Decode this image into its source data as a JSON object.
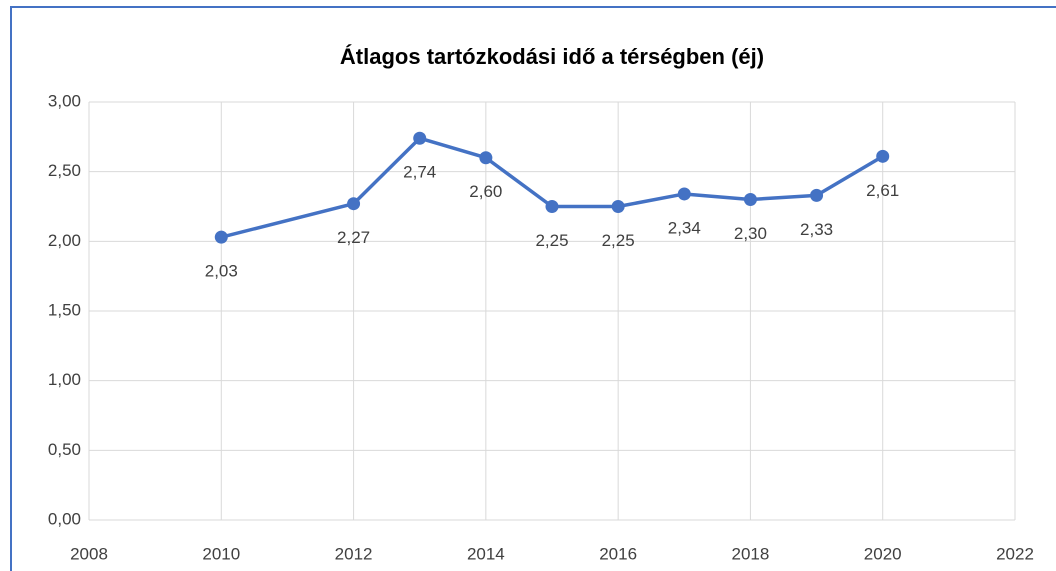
{
  "chart_data": {
    "type": "line",
    "title": "Átlagos tartózkodási idő a térségben (éj)",
    "x": [
      2010,
      2012,
      2013,
      2014,
      2015,
      2016,
      2017,
      2018,
      2019,
      2020
    ],
    "values": [
      2.03,
      2.27,
      2.74,
      2.6,
      2.25,
      2.25,
      2.34,
      2.3,
      2.33,
      2.61
    ],
    "value_labels": [
      "2,03",
      "2,27",
      "2,74",
      "2,60",
      "2,25",
      "2,25",
      "2,34",
      "2,30",
      "2,33",
      "2,61"
    ],
    "color": "#4472c4",
    "xlim": [
      2008,
      2022
    ],
    "xticks": [
      2008,
      2010,
      2012,
      2014,
      2016,
      2018,
      2020,
      2022
    ],
    "ylim": [
      0,
      3
    ],
    "yticks": [
      {
        "value": 0,
        "label": "0,00"
      },
      {
        "value": 0.5,
        "label": "0,50"
      },
      {
        "value": 1,
        "label": "1,00"
      },
      {
        "value": 1.5,
        "label": "1,50"
      },
      {
        "value": 2,
        "label": "2,00"
      },
      {
        "value": 2.5,
        "label": "2,50"
      },
      {
        "value": 3,
        "label": "3,00"
      }
    ],
    "grid": true
  }
}
